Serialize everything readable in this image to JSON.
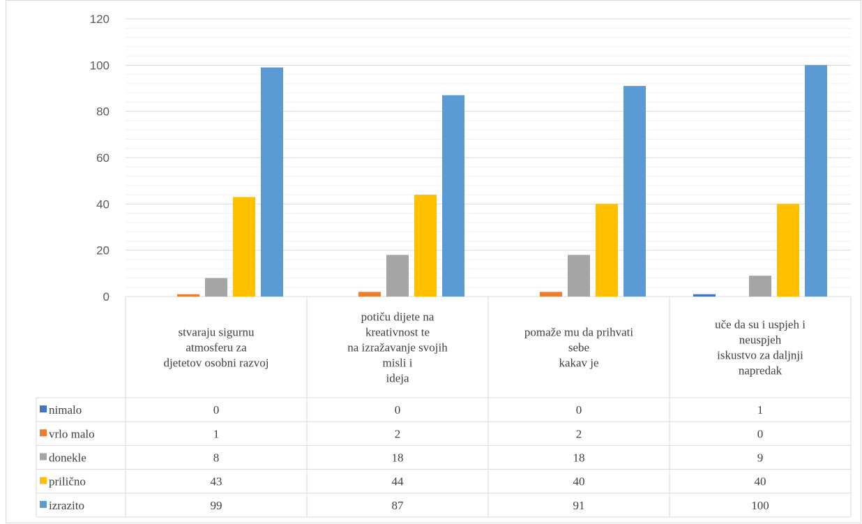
{
  "chart_data": {
    "type": "bar",
    "ylim": [
      0,
      120
    ],
    "yticks": [
      0,
      20,
      40,
      60,
      80,
      100,
      120
    ],
    "grid": true,
    "legend": "data-table",
    "categories": [
      [
        "stvaraju sigurnu",
        "atmosferu za",
        "djetetov osobni razvoj"
      ],
      [
        "potiču dijete na",
        "kreativnost te",
        "na izražavanje svojih",
        "misli i",
        "ideja"
      ],
      [
        "pomaže mu da prihvati",
        "sebe",
        "kakav je"
      ],
      [
        "uče da su i uspjeh i",
        "neuspjeh",
        "iskustvo za daljnji",
        "napredak"
      ]
    ],
    "series": [
      {
        "name": "nimalo",
        "color": "#4472C4",
        "values": [
          0,
          0,
          0,
          1
        ]
      },
      {
        "name": "vrlo malo",
        "color": "#ED7D31",
        "values": [
          1,
          2,
          2,
          0
        ]
      },
      {
        "name": "donekle",
        "color": "#A5A5A5",
        "values": [
          8,
          18,
          18,
          9
        ]
      },
      {
        "name": "prilično",
        "color": "#FFC000",
        "values": [
          43,
          44,
          40,
          40
        ]
      },
      {
        "name": "izrazito",
        "color": "#5B9BD5",
        "values": [
          99,
          87,
          91,
          100
        ]
      }
    ]
  }
}
